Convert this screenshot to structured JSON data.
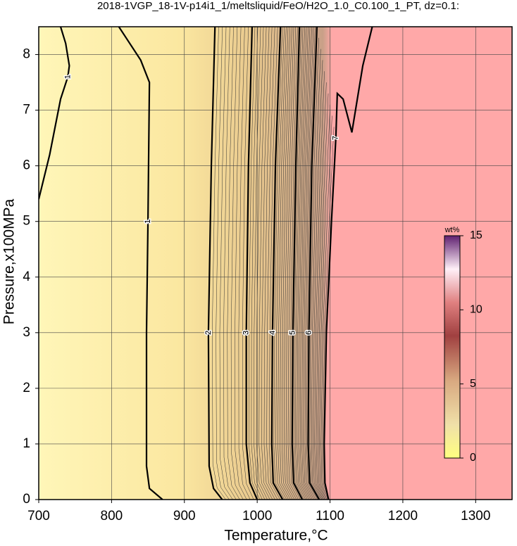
{
  "chart_data": {
    "type": "contour",
    "title": "2018-1VGP_18-1V-p14i1_1/meltsliquid/FeO/H2O_1.0_C0.100_1_PT, dz=0.1:",
    "xlabel": "Temperature,°C",
    "ylabel": "Pressure,x100MPa",
    "xlim": [
      700,
      1350
    ],
    "ylim": [
      0,
      8.5
    ],
    "xticks": [
      700,
      800,
      900,
      1000,
      1100,
      1200,
      1300
    ],
    "yticks": [
      0,
      1,
      2,
      3,
      4,
      5,
      6,
      7,
      8
    ],
    "grid": true,
    "contours": [
      {
        "level": 1,
        "x": [
          870,
          852,
          848,
          848,
          850,
          852,
          840,
          820,
          810
        ],
        "y": [
          0,
          0.2,
          0.6,
          3,
          5,
          7.5,
          7.9,
          8.3,
          8.5
        ]
      },
      {
        "level": 1,
        "x": [
          700,
          715,
          730,
          740,
          742,
          737,
          730
        ],
        "y": [
          5.4,
          6.2,
          7.2,
          7.6,
          7.8,
          8.2,
          8.5
        ]
      },
      {
        "level": 2,
        "x": [
          952,
          940,
          934,
          933,
          937,
          942
        ],
        "y": [
          0,
          0.2,
          0.6,
          3,
          6,
          8.5
        ]
      },
      {
        "level": 3,
        "x": [
          1000,
          990,
          985,
          985,
          988,
          993
        ],
        "y": [
          0,
          0.3,
          1,
          3,
          6,
          8.5
        ]
      },
      {
        "level": 4,
        "x": [
          1035,
          1022,
          1020,
          1021,
          1025,
          1032
        ],
        "y": [
          0,
          0.3,
          1,
          3,
          6,
          8.5
        ]
      },
      {
        "level": 5,
        "x": [
          1062,
          1050,
          1048,
          1049,
          1053,
          1058
        ],
        "y": [
          0,
          0.3,
          1,
          3,
          6,
          8.5
        ]
      },
      {
        "level": 6,
        "x": [
          1085,
          1072,
          1070,
          1071,
          1075,
          1082
        ],
        "y": [
          0,
          0.3,
          1,
          3,
          6,
          8.5
        ]
      },
      {
        "level": 7,
        "x": [
          1098,
          1093,
          1092,
          1095,
          1102,
          1108,
          1110,
          1118,
          1130,
          1145,
          1158
        ],
        "y": [
          0,
          0.3,
          1,
          3,
          5,
          6.5,
          7.3,
          7.2,
          6.6,
          7.8,
          8.5
        ]
      }
    ],
    "colorbar": {
      "label": "wt%",
      "lim": [
        0,
        15
      ],
      "ticks": [
        0,
        5,
        10,
        15
      ]
    }
  }
}
